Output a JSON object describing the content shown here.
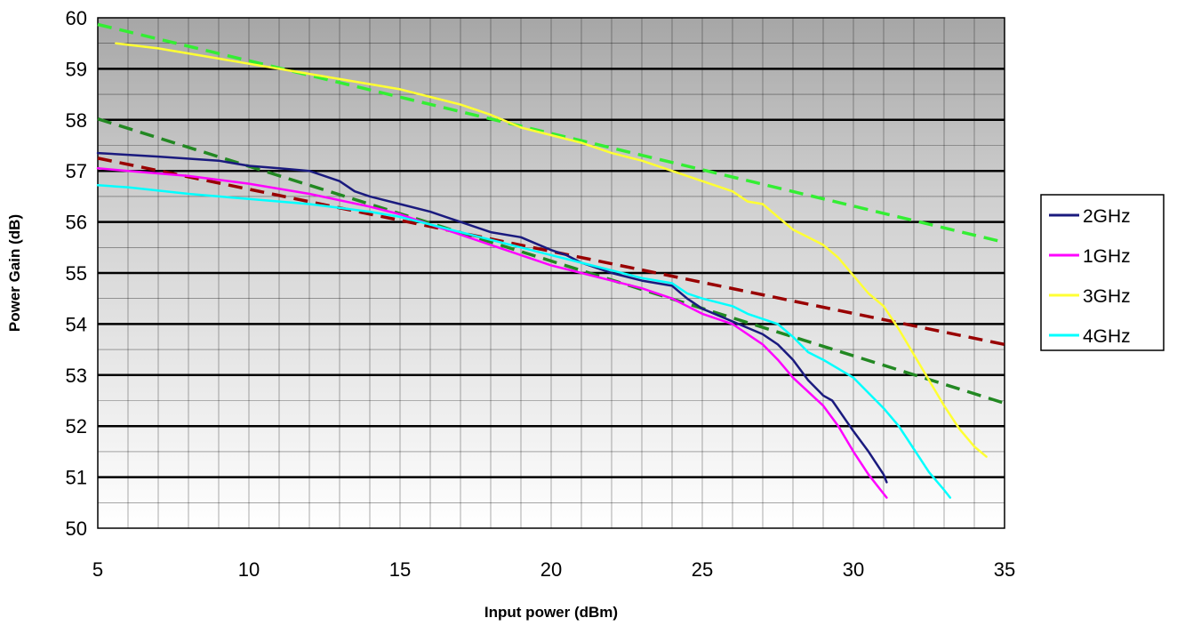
{
  "chart_data": {
    "type": "line",
    "title": "",
    "xlabel": "Input power (dBm)",
    "ylabel": "Power Gain (dB)",
    "xlim": [
      5,
      35
    ],
    "ylim": [
      50,
      60
    ],
    "x_ticks": [
      5,
      10,
      15,
      20,
      25,
      30,
      35
    ],
    "y_ticks": [
      50,
      51,
      52,
      53,
      54,
      55,
      56,
      57,
      58,
      59,
      60
    ],
    "grid": "on",
    "legend_position": "right",
    "background": "gray gradient (dark at top, white at bottom)",
    "series": [
      {
        "name": "2GHz",
        "color": "#1a1a7e",
        "style": "solid",
        "points": [
          [
            5,
            57.35
          ],
          [
            7,
            57.28
          ],
          [
            9,
            57.2
          ],
          [
            10,
            57.1
          ],
          [
            11,
            57.05
          ],
          [
            12,
            57.0
          ],
          [
            12.5,
            56.9
          ],
          [
            13,
            56.8
          ],
          [
            13.5,
            56.6
          ],
          [
            14,
            56.5
          ],
          [
            15,
            56.35
          ],
          [
            16,
            56.2
          ],
          [
            17,
            56.0
          ],
          [
            18,
            55.8
          ],
          [
            19,
            55.7
          ],
          [
            20,
            55.45
          ],
          [
            20.5,
            55.35
          ],
          [
            21,
            55.2
          ],
          [
            22,
            55.0
          ],
          [
            23,
            54.85
          ],
          [
            24,
            54.75
          ],
          [
            24.5,
            54.5
          ],
          [
            25,
            54.3
          ],
          [
            26,
            54.05
          ],
          [
            27,
            53.8
          ],
          [
            27.5,
            53.6
          ],
          [
            28,
            53.3
          ],
          [
            28.5,
            52.9
          ],
          [
            29,
            52.6
          ],
          [
            29.3,
            52.5
          ],
          [
            30,
            51.9
          ],
          [
            30.5,
            51.5
          ],
          [
            31,
            51.05
          ],
          [
            31.1,
            50.9
          ]
        ]
      },
      {
        "name": "1GHz",
        "color": "#ff00ff",
        "style": "solid",
        "points": [
          [
            5,
            57.05
          ],
          [
            6,
            57.0
          ],
          [
            8,
            56.9
          ],
          [
            10,
            56.75
          ],
          [
            12,
            56.55
          ],
          [
            14,
            56.3
          ],
          [
            15,
            56.15
          ],
          [
            16,
            55.95
          ],
          [
            17,
            55.75
          ],
          [
            18,
            55.55
          ],
          [
            19,
            55.35
          ],
          [
            20,
            55.15
          ],
          [
            21,
            55.0
          ],
          [
            22,
            54.85
          ],
          [
            23,
            54.7
          ],
          [
            24,
            54.5
          ],
          [
            25,
            54.2
          ],
          [
            26,
            54.0
          ],
          [
            27,
            53.6
          ],
          [
            27.5,
            53.3
          ],
          [
            28,
            52.95
          ],
          [
            29,
            52.4
          ],
          [
            29.5,
            52.0
          ],
          [
            30,
            51.5
          ],
          [
            30.5,
            51.05
          ],
          [
            31.1,
            50.6
          ]
        ]
      },
      {
        "name": "3GHz",
        "color": "#ffff33",
        "style": "solid",
        "points": [
          [
            5.6,
            59.5
          ],
          [
            7,
            59.4
          ],
          [
            9,
            59.2
          ],
          [
            10,
            59.1
          ],
          [
            11,
            59.0
          ],
          [
            12,
            58.9
          ],
          [
            14,
            58.7
          ],
          [
            15,
            58.6
          ],
          [
            16,
            58.45
          ],
          [
            17,
            58.3
          ],
          [
            18,
            58.1
          ],
          [
            19,
            57.85
          ],
          [
            20,
            57.7
          ],
          [
            21,
            57.55
          ],
          [
            22,
            57.35
          ],
          [
            23,
            57.2
          ],
          [
            24,
            57.0
          ],
          [
            25,
            56.8
          ],
          [
            26,
            56.6
          ],
          [
            26.5,
            56.4
          ],
          [
            27,
            56.35
          ],
          [
            27.5,
            56.1
          ],
          [
            28,
            55.85
          ],
          [
            28.5,
            55.7
          ],
          [
            29,
            55.55
          ],
          [
            29.5,
            55.3
          ],
          [
            30,
            54.95
          ],
          [
            30.5,
            54.6
          ],
          [
            31,
            54.35
          ],
          [
            31.5,
            53.9
          ],
          [
            32,
            53.4
          ],
          [
            32.5,
            52.9
          ],
          [
            33,
            52.4
          ],
          [
            33.5,
            51.95
          ],
          [
            34,
            51.6
          ],
          [
            34.4,
            51.4
          ]
        ]
      },
      {
        "name": "4GHz",
        "color": "#00ffff",
        "style": "solid",
        "points": [
          [
            5,
            56.72
          ],
          [
            6,
            56.68
          ],
          [
            8,
            56.55
          ],
          [
            10,
            56.45
          ],
          [
            12,
            56.35
          ],
          [
            14,
            56.2
          ],
          [
            15,
            56.1
          ],
          [
            16,
            55.95
          ],
          [
            17,
            55.8
          ],
          [
            18,
            55.65
          ],
          [
            19,
            55.5
          ],
          [
            20,
            55.35
          ],
          [
            21,
            55.2
          ],
          [
            22,
            55.05
          ],
          [
            23,
            54.9
          ],
          [
            24,
            54.8
          ],
          [
            24.5,
            54.6
          ],
          [
            25,
            54.5
          ],
          [
            26,
            54.35
          ],
          [
            26.5,
            54.2
          ],
          [
            27,
            54.1
          ],
          [
            27.5,
            54.0
          ],
          [
            28,
            53.75
          ],
          [
            28.5,
            53.45
          ],
          [
            29,
            53.3
          ],
          [
            30,
            52.95
          ],
          [
            31,
            52.35
          ],
          [
            31.5,
            52.0
          ],
          [
            32,
            51.55
          ],
          [
            32.5,
            51.1
          ],
          [
            33,
            50.75
          ],
          [
            33.2,
            50.6
          ]
        ]
      },
      {
        "color": "#33ee33",
        "style": "dashed",
        "points": [
          [
            5,
            59.87
          ],
          [
            35,
            55.6
          ]
        ]
      },
      {
        "color": "#228822",
        "style": "dashed",
        "points": [
          [
            5,
            58.02
          ],
          [
            35,
            52.45
          ]
        ]
      },
      {
        "color": "#990000",
        "style": "dashed",
        "points": [
          [
            5,
            57.25
          ],
          [
            35,
            53.6
          ]
        ]
      }
    ]
  }
}
